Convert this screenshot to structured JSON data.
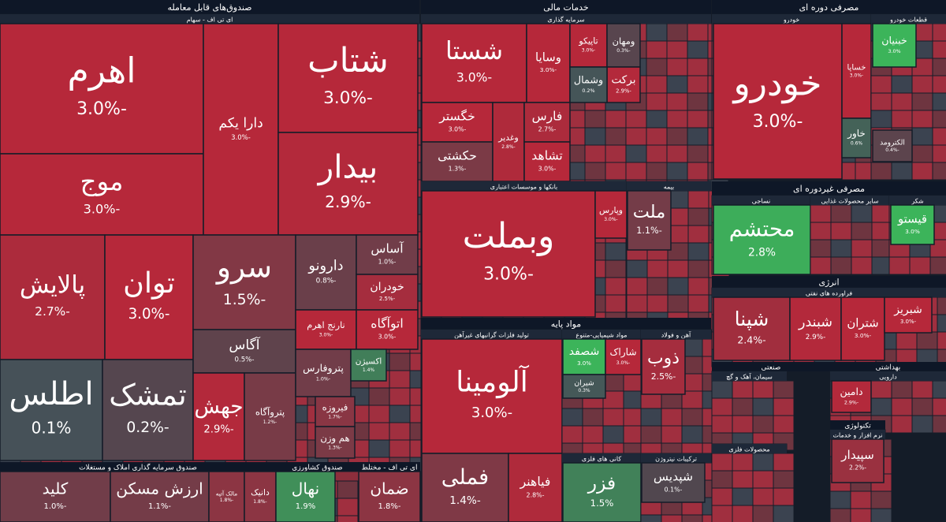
{
  "chart_data": {
    "type": "treemap",
    "sectors": [
      {
        "name": "صندوق‌های قابل معامله",
        "groups": [
          {
            "name": "ای تی اف - سهام",
            "items": [
              {
                "name": "اهرم",
                "value": -3.0,
                "label": "-3.0%"
              },
              {
                "name": "موج",
                "value": -3.0,
                "label": "-3.0%"
              },
              {
                "name": "دارا یکم",
                "value": -3.0,
                "label": "-3.0%"
              },
              {
                "name": "شتاب",
                "value": -3.0,
                "label": "-3.0%"
              },
              {
                "name": "بیدار",
                "value": -2.9,
                "label": "-2.9%"
              },
              {
                "name": "پالایش",
                "value": -2.7,
                "label": "-2.7%"
              },
              {
                "name": "توان",
                "value": -3.0,
                "label": "-3.0%"
              },
              {
                "name": "اطلس",
                "value": 0.1,
                "label": "0.1%"
              },
              {
                "name": "تمشک",
                "value": -0.2,
                "label": "-0.2%"
              },
              {
                "name": "سرو",
                "value": -1.5,
                "label": "-1.5%"
              },
              {
                "name": "آگاس",
                "value": -0.5,
                "label": "-0.5%"
              },
              {
                "name": "جهش",
                "value": -2.9,
                "label": "-2.9%"
              },
              {
                "name": "پتروآگاه",
                "value": -1.2,
                "label": "-1.2%"
              },
              {
                "name": "دارونو",
                "value": -0.8,
                "label": "-0.8%"
              },
              {
                "name": "آساس",
                "value": -1.0,
                "label": "-1.0%"
              },
              {
                "name": "خودران",
                "value": -2.5,
                "label": "-2.5%"
              },
              {
                "name": "نارنج اهرم",
                "value": -3.0,
                "label": "-3.0%"
              },
              {
                "name": "اتوآگاه",
                "value": -3.0,
                "label": "-3.0%"
              },
              {
                "name": "پتروفارس",
                "value": -1.0,
                "label": "-1.0%"
              },
              {
                "name": "اکسیژن",
                "value": 1.4,
                "label": "1.4%"
              },
              {
                "name": "فیروزه",
                "value": -1.7,
                "label": "-1.7%"
              },
              {
                "name": "هم وزن",
                "value": -1.3,
                "label": "-1.3%"
              }
            ]
          }
        ]
      },
      {
        "name": "صندوق سرمایه گذاری املاک و مستغلات",
        "groups": [
          {
            "items": [
              {
                "name": "کلید",
                "value": -1.0,
                "label": "-1.0%"
              },
              {
                "name": "ارزش مسکن",
                "value": -1.1,
                "label": "-1.1%"
              },
              {
                "name": "مالک آتیه",
                "value": -1.8,
                "label": "-1.8%"
              },
              {
                "name": "دانیک",
                "value": -1.8,
                "label": "-1.8%"
              }
            ]
          }
        ]
      },
      {
        "name": "صندوق کشاورزی",
        "groups": [
          {
            "items": [
              {
                "name": "نهال",
                "value": 1.9,
                "label": "1.9%"
              }
            ]
          }
        ]
      },
      {
        "name": "ای تی اف - مختلط",
        "groups": [
          {
            "items": [
              {
                "name": "ضمان",
                "value": -1.8,
                "label": "-1.8%"
              }
            ]
          }
        ]
      },
      {
        "name": "خدمات مالی",
        "groups": [
          {
            "name": "سرمایه گذاری",
            "items": [
              {
                "name": "شستا",
                "value": -3.0,
                "label": "-3.0%"
              },
              {
                "name": "وسایا",
                "value": -3.0,
                "label": "-3.0%"
              },
              {
                "name": "تاپیکو",
                "value": -3.0,
                "label": "-3.0%"
              },
              {
                "name": "ومهان",
                "value": -0.3,
                "label": "-0.3%"
              },
              {
                "name": "برکت",
                "value": -2.9,
                "label": "-2.9%"
              },
              {
                "name": "وشمال",
                "value": 0.2,
                "label": "0.2%"
              },
              {
                "name": "خگستر",
                "value": -3.0,
                "label": "-3.0%"
              },
              {
                "name": "حکشتی",
                "value": -1.3,
                "label": "-1.3%"
              },
              {
                "name": "وغدیر",
                "value": -2.8,
                "label": "-2.8%"
              },
              {
                "name": "فارس",
                "value": -2.7,
                "label": "-2.7%"
              },
              {
                "name": "تشاهد",
                "value": -3.0,
                "label": "-3.0%"
              }
            ]
          },
          {
            "name": "بانکها و موسسات اعتباری",
            "items": [
              {
                "name": "وبملت",
                "value": -3.0,
                "label": "-3.0%"
              },
              {
                "name": "وپارس",
                "value": -3.0,
                "label": "-3.0%"
              }
            ]
          },
          {
            "name": "بیمه",
            "items": [
              {
                "name": "ملت",
                "value": -1.1,
                "label": "-1.1%"
              }
            ]
          }
        ]
      },
      {
        "name": "مواد پایه",
        "groups": [
          {
            "name": "تولید فلزات گرانبهای غیرآهن",
            "items": [
              {
                "name": "آلومینا",
                "value": -3.0,
                "label": "-3.0%"
              },
              {
                "name": "فملی",
                "value": -1.4,
                "label": "-1.4%"
              },
              {
                "name": "فیاهنر",
                "value": -2.8,
                "label": "-2.8%"
              }
            ]
          },
          {
            "name": "مواد شیمیایی-متنوع",
            "items": [
              {
                "name": "شصفد",
                "value": 3.0,
                "label": "3.0%"
              },
              {
                "name": "شاراک",
                "value": -3.0,
                "label": "-3.0%"
              },
              {
                "name": "شیران",
                "value": 0.3,
                "label": "0.3%"
              }
            ]
          },
          {
            "name": "آهن و فولاد",
            "items": [
              {
                "name": "ذوب",
                "value": -2.5,
                "label": "-2.5%"
              }
            ]
          },
          {
            "name": "کانی های فلزی",
            "items": [
              {
                "name": "فزر",
                "value": 1.5,
                "label": "1.5%"
              }
            ]
          },
          {
            "name": "ترکیبات نیتروژن",
            "items": [
              {
                "name": "شپدیس",
                "value": -0.1,
                "label": "-0.1%"
              }
            ]
          }
        ]
      },
      {
        "name": "مصرفی دوره ای",
        "groups": [
          {
            "name": "خودرو",
            "items": [
              {
                "name": "خودرو",
                "value": -3.0,
                "label": "-3.0%"
              },
              {
                "name": "خساپا",
                "value": -3.0,
                "label": "-3.0%"
              },
              {
                "name": "خاور",
                "value": 0.6,
                "label": "0.6%"
              }
            ]
          },
          {
            "name": "قطعات خودرو",
            "items": [
              {
                "name": "خبنیان",
                "value": 3.0,
                "label": "3.0%"
              },
              {
                "name": "الکترومد",
                "value": -0.4,
                "label": "-0.4%"
              }
            ]
          }
        ]
      },
      {
        "name": "مصرفی غیردوره ای",
        "groups": [
          {
            "name": "نساجی",
            "items": [
              {
                "name": "محتشم",
                "value": 2.8,
                "label": "2.8%"
              }
            ]
          },
          {
            "name": "سایر محصولات غذایی"
          },
          {
            "name": "شکر",
            "items": [
              {
                "name": "قیستو",
                "value": 3.0,
                "label": "3.0%"
              }
            ]
          }
        ]
      },
      {
        "name": "انرژی",
        "groups": [
          {
            "name": "فراورده های نفتی",
            "items": [
              {
                "name": "شپنا",
                "value": -2.4,
                "label": "-2.4%"
              },
              {
                "name": "شبندر",
                "value": -2.9,
                "label": "-2.9%"
              },
              {
                "name": "شتران",
                "value": -3.0,
                "label": "-3.0%"
              },
              {
                "name": "شبریز",
                "value": -3.0,
                "label": "-3.0%"
              }
            ]
          }
        ]
      },
      {
        "name": "صنعتی",
        "groups": [
          {
            "name": "سیمان، آهک و گچ"
          },
          {
            "name": "محصولات فلزی"
          }
        ]
      },
      {
        "name": "بهداشتی",
        "groups": [
          {
            "name": "دارویی",
            "items": [
              {
                "name": "دامین",
                "value": -2.9,
                "label": "-2.9%"
              }
            ]
          }
        ]
      },
      {
        "name": "تکنولوژی",
        "groups": [
          {
            "name": "نرم افزار و خدمات",
            "items": [
              {
                "name": "سپیدار",
                "value": -2.2,
                "label": "-2.2%"
              }
            ]
          }
        ]
      }
    ]
  }
}
